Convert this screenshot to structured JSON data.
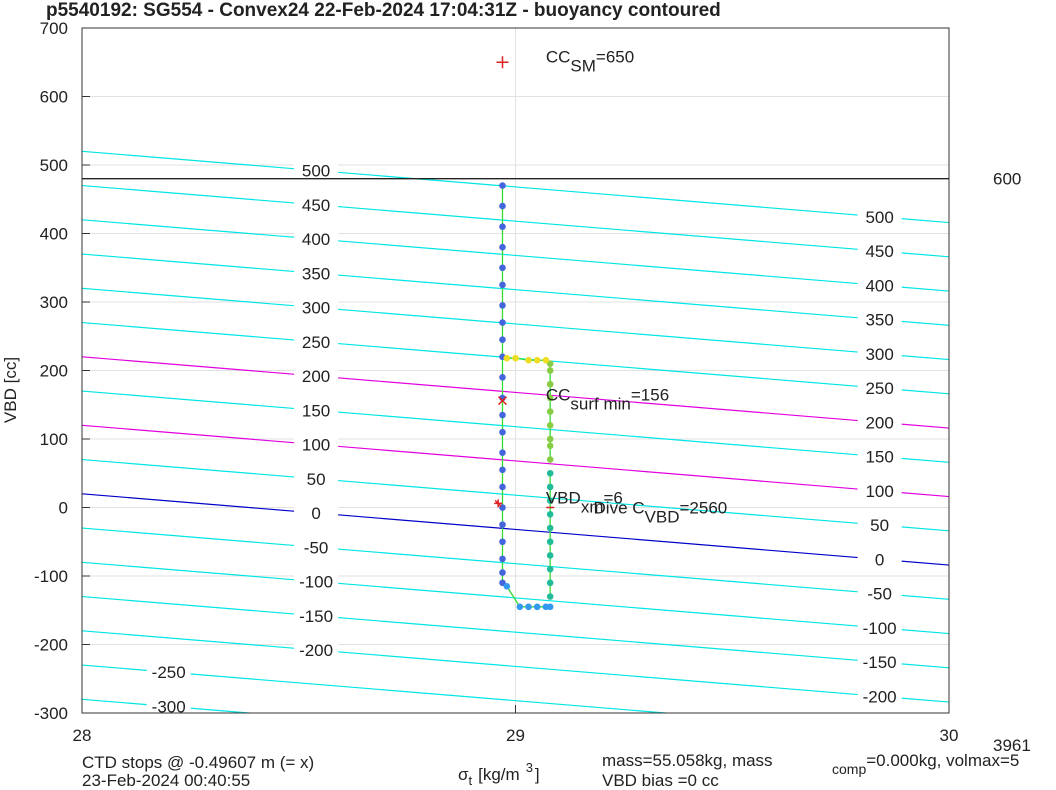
{
  "chart_data": {
    "type": "scatter",
    "title": "p5540192: SG554 - Convex24 22-Feb-2024 17:04:31Z - buoyancy contoured",
    "x_label": {
      "symbol": "σ",
      "sub": "t",
      "unit": "[kg/m",
      "sup": "3",
      "close": "]"
    },
    "y_label": "VBD [cc]",
    "xlim": [
      28,
      30
    ],
    "xticks": [
      28,
      29,
      30
    ],
    "ylim": [
      -300,
      700
    ],
    "yticks": [
      -300,
      -200,
      -100,
      0,
      100,
      200,
      300,
      400,
      500,
      600,
      700
    ],
    "grid": true,
    "contours": [
      {
        "level": -300,
        "color": "#00e5e5",
        "y_start": -280,
        "y_end": -384
      },
      {
        "level": -250,
        "color": "#00e5e5",
        "y_start": -230,
        "y_end": -334
      },
      {
        "level": -200,
        "color": "#00e5e5",
        "y_start": -180,
        "y_end": -284
      },
      {
        "level": -150,
        "color": "#00e5e5",
        "y_start": -130,
        "y_end": -234
      },
      {
        "level": -100,
        "color": "#00e5e5",
        "y_start": -80,
        "y_end": -184
      },
      {
        "level": -50,
        "color": "#00e5e5",
        "y_start": -30,
        "y_end": -134
      },
      {
        "level": 0,
        "color": "#0000c8",
        "y_start": 20,
        "y_end": -84
      },
      {
        "level": 50,
        "color": "#00e5e5",
        "y_start": 70,
        "y_end": -34
      },
      {
        "level": 100,
        "color": "#e000e0",
        "y_start": 120,
        "y_end": 16
      },
      {
        "level": 150,
        "color": "#00e5e5",
        "y_start": 170,
        "y_end": 66
      },
      {
        "level": 200,
        "color": "#e000e0",
        "y_start": 220,
        "y_end": 116
      },
      {
        "level": 250,
        "color": "#00e5e5",
        "y_start": 270,
        "y_end": 166
      },
      {
        "level": 300,
        "color": "#00e5e5",
        "y_start": 320,
        "y_end": 216
      },
      {
        "level": 350,
        "color": "#00e5e5",
        "y_start": 370,
        "y_end": 266
      },
      {
        "level": 400,
        "color": "#00e5e5",
        "y_start": 420,
        "y_end": 316
      },
      {
        "level": 450,
        "color": "#00e5e5",
        "y_start": 470,
        "y_end": 366
      },
      {
        "level": 500,
        "color": "#00e5e5",
        "y_start": 520,
        "y_end": 416
      }
    ],
    "line_color": "#33dd33",
    "series": [
      {
        "color": "#4466dd",
        "x": [
          28.97,
          28.97,
          28.97,
          28.97,
          28.97,
          28.97,
          28.97,
          28.97,
          28.97,
          28.97,
          28.97,
          28.97,
          28.97,
          28.97,
          28.97,
          28.97,
          28.97,
          28.97,
          28.97,
          28.97,
          28.97,
          28.97,
          28.97
        ],
        "values": [
          470,
          440,
          410,
          380,
          350,
          325,
          295,
          270,
          245,
          220,
          190,
          160,
          135,
          110,
          80,
          55,
          30,
          0,
          -25,
          -50,
          -75,
          -95,
          -110
        ]
      },
      {
        "color": "#3399ee",
        "x": [
          28.98,
          29.01,
          29.03,
          29.05,
          29.07,
          29.08
        ],
        "values": [
          -115,
          -145,
          -145,
          -145,
          -145,
          -145
        ]
      },
      {
        "color": "#22bb99",
        "x": [
          29.08,
          29.08,
          29.08,
          29.08,
          29.08,
          29.08,
          29.08,
          29.08,
          29.08,
          29.08
        ],
        "values": [
          -130,
          -110,
          -90,
          -70,
          -50,
          -30,
          -10,
          10,
          30,
          50
        ]
      },
      {
        "color": "#88cc44",
        "x": [
          29.08,
          29.08,
          29.08,
          29.08,
          29.08,
          29.08,
          29.08,
          29.08,
          29.08
        ],
        "values": [
          70,
          90,
          100,
          120,
          140,
          160,
          180,
          200,
          210
        ]
      },
      {
        "color": "#eedd22",
        "x": [
          29.07,
          29.05,
          29.03,
          29.0,
          28.98
        ],
        "values": [
          215,
          215,
          215,
          218,
          218
        ]
      }
    ],
    "markers": [
      {
        "x": 28.97,
        "value": 650,
        "symbol": "+",
        "color": "#e02020",
        "label": "CC",
        "sub": "SM",
        "after": "=650"
      },
      {
        "x": 28.97,
        "value": 156,
        "symbol": "x",
        "color": "#e02020",
        "label": "CC",
        "sub": "surf min",
        "after": "=156"
      },
      {
        "x": 28.96,
        "value": 6,
        "symbol": "*",
        "color": "#e02020",
        "label": "VBD",
        "sub": "xm",
        "after": "=6"
      },
      {
        "x": 29.08,
        "value": 0,
        "symbol": "-",
        "color": "#e02020",
        "label": "Dive C",
        "sub": "VBD",
        "after": "=2560"
      }
    ],
    "hline": {
      "value": 480,
      "label": "600"
    },
    "corner_text": "3961",
    "footer": {
      "left": [
        "CTD stops @ -0.49607 m (= x)",
        "23-Feb-2024 00:40:55"
      ],
      "right": {
        "a": "mass=55.058kg, mass",
        "sub": "comp",
        "b": "=0.000kg, volmax=5",
        "c": "VBD bias =0 cc"
      }
    }
  }
}
